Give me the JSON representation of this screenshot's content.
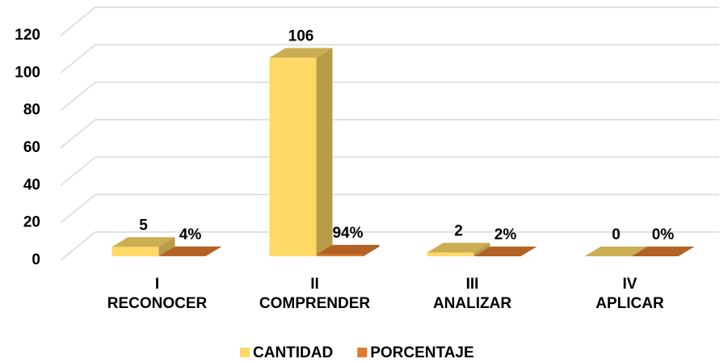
{
  "chart_data": {
    "type": "bar3d",
    "categories": [
      "I\nRECONOCER",
      "II\nCOMPRENDER",
      "III\nANALIZAR",
      "IV\nAPLICAR"
    ],
    "series": [
      {
        "name": "CANTIDAD",
        "color": "#FFD966",
        "values": [
          5,
          106,
          2,
          0
        ]
      },
      {
        "name": "PORCENTAJE",
        "color": "#E07A2C",
        "values": [
          0.04,
          0.94,
          0.02,
          0
        ],
        "value_labels": [
          "4%",
          "94%",
          "2%",
          "0%"
        ]
      }
    ],
    "ylim": [
      0,
      120
    ],
    "yticks": [
      0,
      20,
      40,
      60,
      80,
      100,
      120
    ],
    "grid": true,
    "legend": "bottom"
  }
}
